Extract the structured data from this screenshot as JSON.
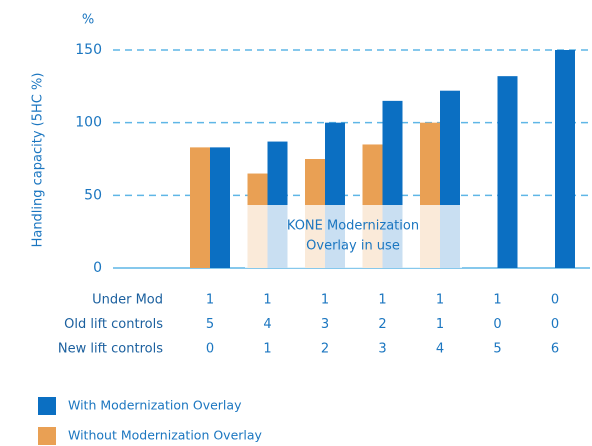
{
  "chart_data": {
    "type": "bar",
    "unit": "%",
    "y_label": "Handling capacity (5HC %)",
    "ylim": [
      0,
      150
    ],
    "yticks": [
      0,
      50,
      100,
      150
    ],
    "grid": true,
    "series": [
      {
        "name": "Without Modernization Overlay",
        "color": "#e9a054",
        "values": [
          83,
          65,
          75,
          85,
          100,
          null,
          null
        ]
      },
      {
        "name": "With Modernization Overlay",
        "color": "#0b6fc2",
        "values": [
          83,
          87,
          100,
          115,
          122,
          132,
          150
        ]
      }
    ],
    "rows": [
      {
        "label": "Under Mod",
        "values": [
          1,
          1,
          1,
          1,
          1,
          1,
          0
        ]
      },
      {
        "label": "Old lift controls",
        "values": [
          5,
          4,
          3,
          2,
          1,
          0,
          0
        ]
      },
      {
        "label": "New lift controls",
        "values": [
          0,
          1,
          2,
          3,
          4,
          5,
          6
        ]
      }
    ],
    "annotation": [
      "KONE Modernization",
      "Overlay in use"
    ],
    "legend": [
      {
        "name": "With Modernization Overlay",
        "color": "#0b6fc2"
      },
      {
        "name": "Without Modernization Overlay",
        "color": "#e9a054"
      }
    ]
  }
}
